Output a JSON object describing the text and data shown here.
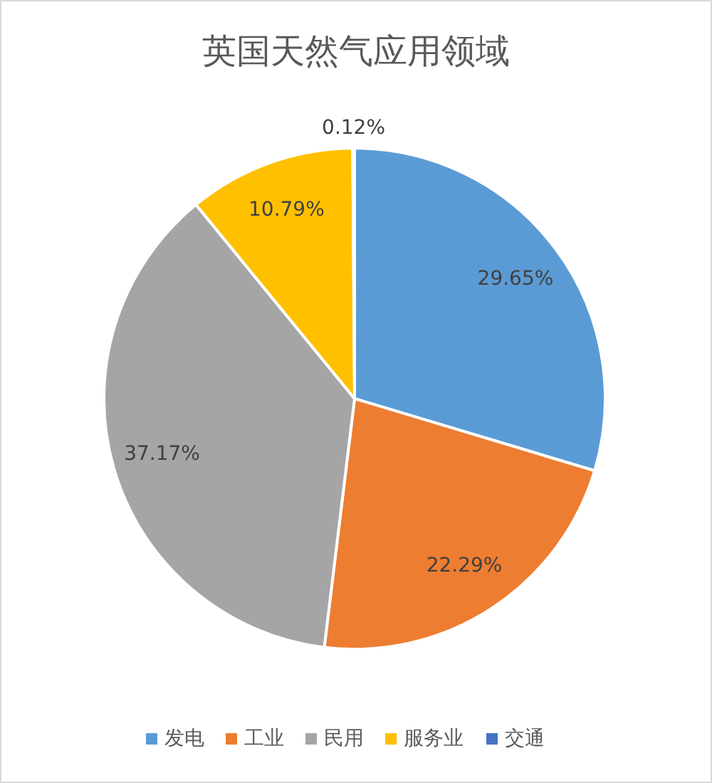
{
  "chart_data": {
    "type": "pie",
    "title": "英国天然气应用领域",
    "categories": [
      "发电",
      "工业",
      "民用",
      "服务业",
      "交通"
    ],
    "values": [
      29.65,
      22.29,
      37.17,
      10.79,
      0.12
    ],
    "value_labels": [
      "29.65%",
      "22.29%",
      "37.17%",
      "10.79%",
      "0.12%"
    ],
    "colors": [
      "#5b9bd5",
      "#ed7d31",
      "#a5a5a5",
      "#ffc000",
      "#4472c4"
    ],
    "legend": "bottom"
  }
}
